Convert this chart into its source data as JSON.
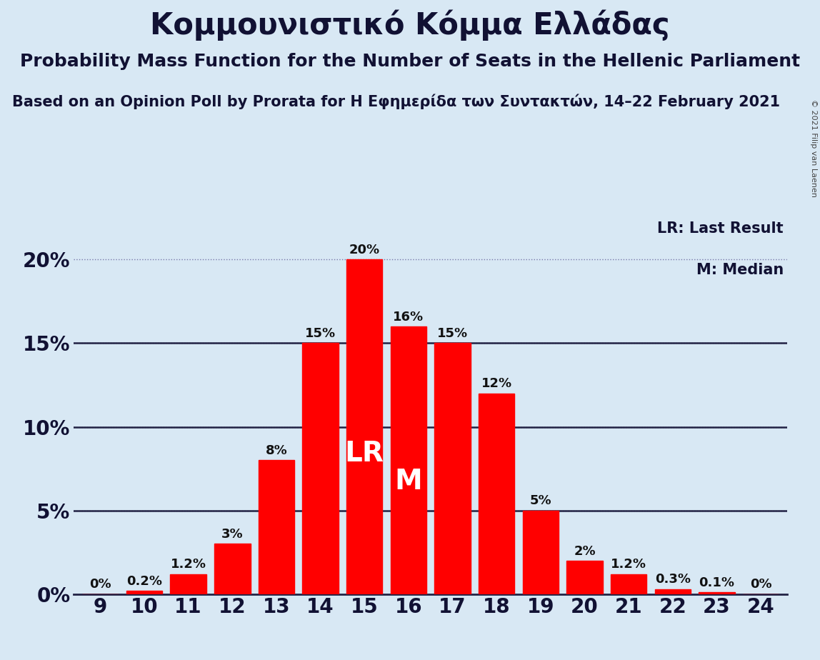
{
  "title": "Κομμουνιστικό Κόμμα Ελλάδας",
  "subtitle": "Probability Mass Function for the Number of Seats in the Hellenic Parliament",
  "source_line": "Based on an Opinion Poll by Prorata for Η Εφημερίδα των Συντακτών, 14–22 February 2021",
  "copyright": "© 2021 Filip van Laenen",
  "seats": [
    9,
    10,
    11,
    12,
    13,
    14,
    15,
    16,
    17,
    18,
    19,
    20,
    21,
    22,
    23,
    24
  ],
  "probabilities": [
    0.0,
    0.2,
    1.2,
    3.0,
    8.0,
    15.0,
    20.0,
    16.0,
    15.0,
    12.0,
    5.0,
    2.0,
    1.2,
    0.3,
    0.1,
    0.0
  ],
  "bar_color": "#ff0000",
  "bg_color": "#d8e8f4",
  "label_color_dark": "#111111",
  "label_color_light": "#ffffff",
  "lr_seat": 15,
  "median_seat": 16,
  "lr_label": "LR",
  "median_label": "M",
  "legend_lr": "LR: Last Result",
  "legend_m": "M: Median",
  "yticks": [
    0,
    5,
    10,
    15,
    20
  ],
  "ylim_max": 22.5,
  "title_fontsize": 30,
  "subtitle_fontsize": 18,
  "source_fontsize": 15,
  "bar_label_fontsize": 13,
  "axis_tick_fontsize": 20,
  "legend_fontsize": 15,
  "lr_m_fontsize": 28,
  "copyright_fontsize": 8,
  "solid_line_color": "#222244",
  "dot_line_color": "#7777aa",
  "text_color": "#111133"
}
